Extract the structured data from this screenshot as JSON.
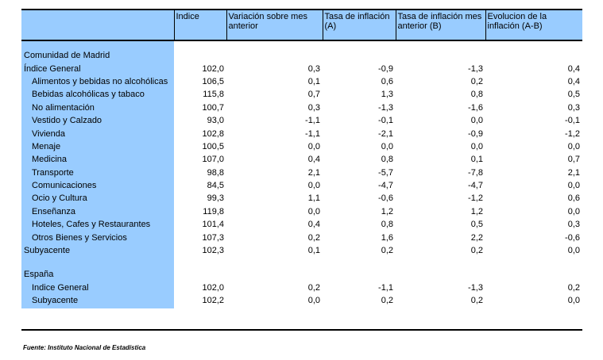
{
  "headers": [
    "",
    "Indice",
    "Variación sobre mes anterior",
    "Tasa de inflación (A)",
    "Tasa de inflación mes anterior (B)",
    "Evolucion de la inflación (A-B)"
  ],
  "madrid": {
    "title": "Comunidad de Madrid",
    "rows": [
      {
        "label": "Índice General",
        "values": [
          "102,0",
          "0,3",
          "-0,9",
          "-1,3",
          "0,4"
        ],
        "indent": false
      },
      {
        "label": "Alimentos y bebidas no alcohólicas",
        "values": [
          "106,5",
          "0,1",
          "0,6",
          "0,2",
          "0,4"
        ],
        "indent": true
      },
      {
        "label": "Bebidas alcohólicas y tabaco",
        "values": [
          "115,8",
          "0,7",
          "1,3",
          "0,8",
          "0,5"
        ],
        "indent": true
      },
      {
        "label": "No alimentación",
        "values": [
          "100,7",
          "0,3",
          "-1,3",
          "-1,6",
          "0,3"
        ],
        "indent": true
      },
      {
        "label": "Vestido y Calzado",
        "values": [
          "93,0",
          "-1,1",
          "-0,1",
          "0,0",
          "-0,1"
        ],
        "indent": true
      },
      {
        "label": "Vivienda",
        "values": [
          "102,8",
          "-1,1",
          "-2,1",
          "-0,9",
          "-1,2"
        ],
        "indent": true
      },
      {
        "label": "Menaje",
        "values": [
          "100,5",
          "0,0",
          "0,0",
          "0,0",
          "0,0"
        ],
        "indent": true
      },
      {
        "label": "Medicina",
        "values": [
          "107,0",
          "0,4",
          "0,8",
          "0,1",
          "0,7"
        ],
        "indent": true
      },
      {
        "label": "Transporte",
        "values": [
          "98,8",
          "2,1",
          "-5,7",
          "-7,8",
          "2,1"
        ],
        "indent": true
      },
      {
        "label": "Comunicaciones",
        "values": [
          "84,5",
          "0,0",
          "-4,7",
          "-4,7",
          "0,0"
        ],
        "indent": true
      },
      {
        "label": "Ocio y Cultura",
        "values": [
          "99,3",
          "1,1",
          "-0,6",
          "-1,2",
          "0,6"
        ],
        "indent": true
      },
      {
        "label": "Enseñanza",
        "values": [
          "119,8",
          "0,0",
          "1,2",
          "1,2",
          "0,0"
        ],
        "indent": true
      },
      {
        "label": "Hoteles, Cafes y Restaurantes",
        "values": [
          "101,4",
          "0,4",
          "0,8",
          "0,5",
          "0,3"
        ],
        "indent": true
      },
      {
        "label": "Otros Bienes y Servicios",
        "values": [
          "107,3",
          "0,2",
          "1,6",
          "2,2",
          "-0,6"
        ],
        "indent": true
      },
      {
        "label": "Subyacente",
        "values": [
          "102,3",
          "0,1",
          "0,2",
          "0,2",
          "0,0"
        ],
        "indent": false
      }
    ]
  },
  "espana": {
    "title": "España",
    "rows": [
      {
        "label": "Indice General",
        "values": [
          "102,0",
          "0,2",
          "-1,1",
          "-1,3",
          "0,2"
        ],
        "indent": true
      },
      {
        "label": "Subyacente",
        "values": [
          "102,2",
          "0,0",
          "0,2",
          "0,2",
          "0,0"
        ],
        "indent": true
      }
    ]
  },
  "source": "Fuente: Instituto Nacional de Estadística"
}
